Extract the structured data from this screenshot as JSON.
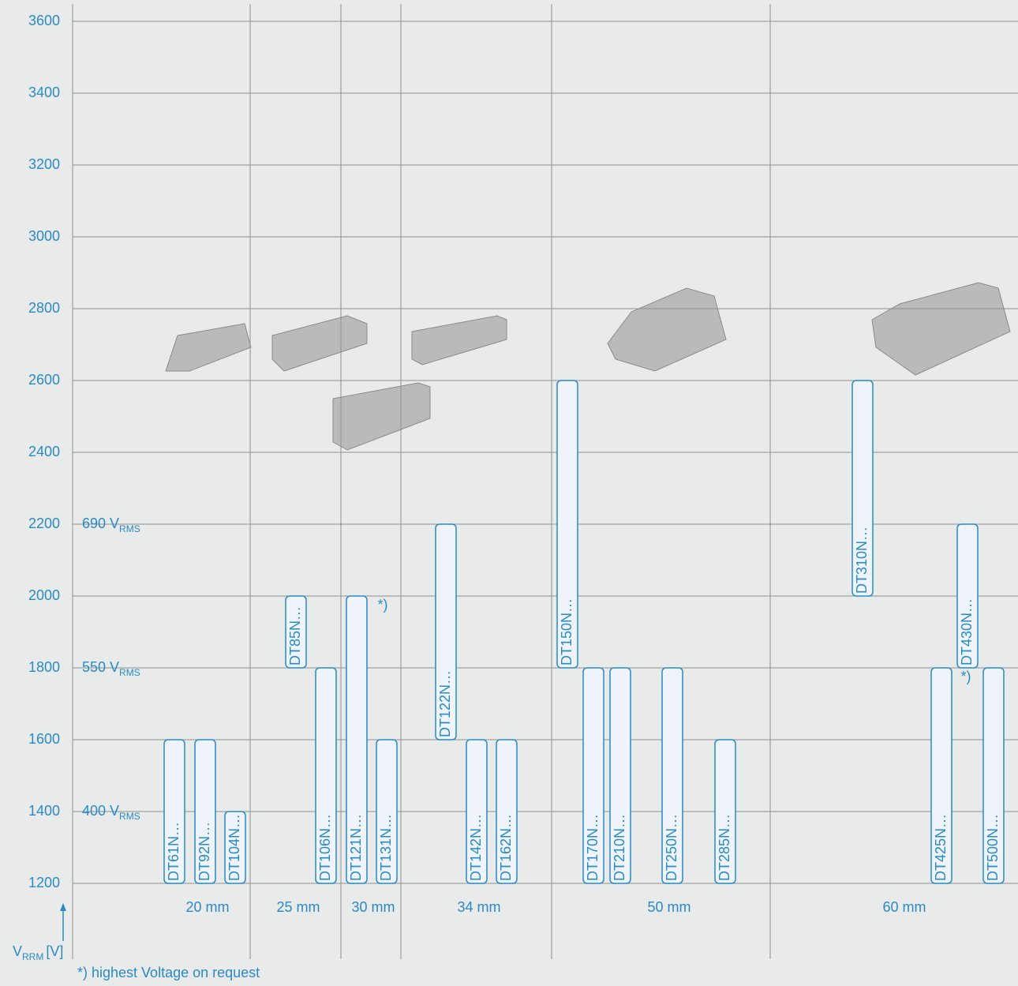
{
  "chart_data": {
    "type": "range-bar",
    "ylim": [
      1200,
      3600
    ],
    "yticks": [
      1200,
      1400,
      1600,
      1800,
      2000,
      2200,
      2400,
      2600,
      2800,
      3000,
      3200,
      3400,
      3600
    ],
    "grid": true,
    "y_label": "V",
    "y_label_sub": "RRM",
    "y_label_unit": "[V]",
    "color": "#2a8ac4",
    "bar_fill": "#eef4f9",
    "groups": [
      {
        "label": "20 mm",
        "bars": [
          {
            "name": "DT61N…",
            "low": 1200,
            "high": 1600
          },
          {
            "name": "DT92N…",
            "low": 1200,
            "high": 1600
          },
          {
            "name": "DT104N…",
            "low": 1200,
            "high": 1400
          }
        ]
      },
      {
        "label": "25 mm",
        "bars": [
          {
            "name": "DT85N…",
            "low": 1800,
            "high": 2000
          },
          {
            "name": "DT106N…",
            "low": 1200,
            "high": 1800
          }
        ]
      },
      {
        "label": "30 mm",
        "bars": [
          {
            "name": "DT121N…",
            "low": 1200,
            "high": 2000
          },
          {
            "name": "DT131N…",
            "low": 1200,
            "high": 1600
          }
        ]
      },
      {
        "label": "34 mm",
        "bars": [
          {
            "name": "DT122N…",
            "low": 1600,
            "high": 2200
          },
          {
            "name": "DT142N…",
            "low": 1200,
            "high": 1600
          },
          {
            "name": "DT162N…",
            "low": 1200,
            "high": 1600
          }
        ]
      },
      {
        "label": "50 mm",
        "bars": [
          {
            "name": "DT150N…",
            "low": 1800,
            "high": 2600
          },
          {
            "name": "DT170N…",
            "low": 1200,
            "high": 1800
          },
          {
            "name": "DT210N…",
            "low": 1200,
            "high": 1800
          },
          {
            "name": "DT250N…",
            "low": 1200,
            "high": 1800
          },
          {
            "name": "DT285N…",
            "low": 1200,
            "high": 1600
          }
        ]
      },
      {
        "label": "60 mm",
        "bars": [
          {
            "name": "DT310N…",
            "low": 2000,
            "high": 2600
          },
          {
            "name": "DT425N…",
            "low": 1200,
            "high": 1800
          },
          {
            "name": "DT430N…",
            "low": 1800,
            "high": 2200
          },
          {
            "name": "DT500N…",
            "low": 1200,
            "high": 1800
          }
        ]
      }
    ],
    "reference_lines": [
      {
        "label": "690 V",
        "sub": "RMS",
        "value": 2200
      },
      {
        "label": "550 V",
        "sub": "RMS",
        "value": 1800
      },
      {
        "label": "400 V",
        "sub": "RMS",
        "value": 1400
      }
    ],
    "annotations": [
      "*)",
      "*)"
    ],
    "footnote": "*) highest Voltage on request"
  }
}
